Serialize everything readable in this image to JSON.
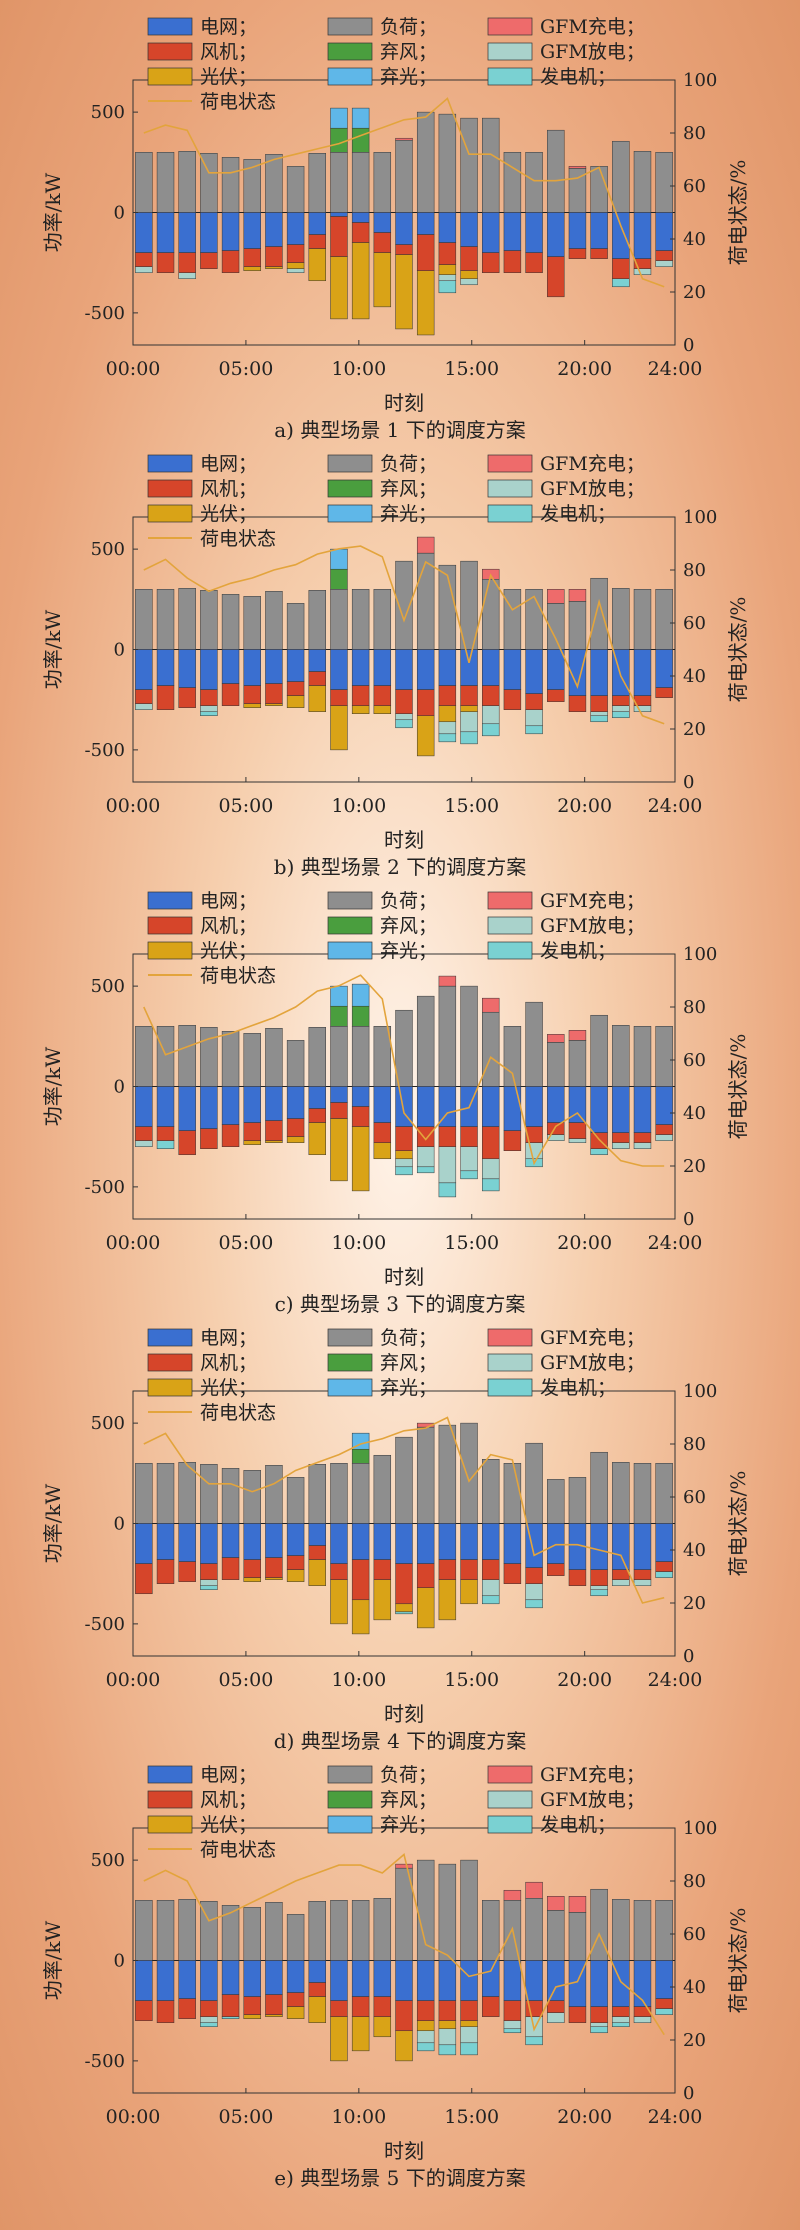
{
  "legend_labels": {
    "grid": "电网；",
    "load": "负荷；",
    "gfmc": "GFM充电；",
    "wind": "风机；",
    "windc": "弃风；",
    "gfmd": "GFM放电；",
    "pv": "光伏；",
    "pvc": "弃光；",
    "gen": "发电机；",
    "soc": "荷电状态"
  },
  "colors": {
    "grid": "#3a6fd0",
    "load": "#8e8e8e",
    "gfmc": "#ee6b6b",
    "wind": "#d6452a",
    "windc": "#4a9e3e",
    "gfmd": "#a9d2cb",
    "pv": "#d9a317",
    "pvc": "#5fb7e8",
    "gen": "#7ad1d2",
    "soc": "#e3a43c"
  },
  "chart_data": [
    {
      "type": "bar",
      "title": "a) 典型场景 1 下的调度方案",
      "xlabel": "时刻",
      "ylabel": "功率/kW",
      "y2label": "荷电状态/%",
      "x_ticks": [
        "00:00",
        "05:00",
        "10:00",
        "15:00",
        "20:00",
        "24:00"
      ],
      "y_ticks": [
        -500,
        0,
        500
      ],
      "y2_ticks": [
        0,
        20,
        40,
        60,
        80,
        100
      ],
      "ylim": [
        -660,
        660
      ],
      "y2lim": [
        0,
        100
      ],
      "load": [
        300,
        300,
        305,
        295,
        275,
        265,
        290,
        230,
        295,
        300,
        300,
        300,
        360,
        500,
        490,
        470,
        470,
        300,
        300,
        410,
        220,
        230,
        355,
        305,
        300
      ],
      "windc": [
        0,
        0,
        0,
        0,
        0,
        0,
        0,
        0,
        0,
        120,
        120,
        0,
        0,
        0,
        0,
        0,
        0,
        0,
        0,
        0,
        0,
        0,
        0,
        0,
        0
      ],
      "pvc": [
        0,
        0,
        0,
        0,
        0,
        0,
        0,
        0,
        0,
        100,
        100,
        0,
        0,
        0,
        0,
        0,
        0,
        0,
        0,
        0,
        0,
        0,
        0,
        0,
        0
      ],
      "gfmc": [
        0,
        0,
        0,
        0,
        0,
        0,
        0,
        0,
        0,
        0,
        0,
        0,
        10,
        0,
        0,
        0,
        0,
        0,
        0,
        0,
        10,
        0,
        0,
        0,
        0
      ],
      "grid": [
        -200,
        -200,
        -200,
        -200,
        -190,
        -180,
        -170,
        -160,
        -110,
        -20,
        -50,
        -100,
        -160,
        -110,
        -150,
        -170,
        -200,
        -190,
        -200,
        -220,
        -180,
        -180,
        -230,
        -230,
        -190
      ],
      "wind": [
        -70,
        -100,
        -100,
        -80,
        -110,
        -90,
        -100,
        -90,
        -70,
        -200,
        -100,
        -100,
        -50,
        -180,
        -110,
        -120,
        -100,
        -110,
        -100,
        -200,
        -50,
        -50,
        -100,
        -50,
        -50
      ],
      "pv": [
        0,
        0,
        0,
        0,
        0,
        -20,
        -10,
        -30,
        -160,
        -310,
        -380,
        -270,
        -370,
        -320,
        -50,
        -40,
        0,
        0,
        0,
        0,
        0,
        0,
        0,
        0,
        0
      ],
      "gfmd": [
        -30,
        0,
        -30,
        0,
        0,
        0,
        0,
        -20,
        0,
        0,
        0,
        0,
        0,
        0,
        -30,
        -30,
        0,
        0,
        0,
        0,
        0,
        0,
        0,
        -30,
        -30
      ],
      "gen": [
        0,
        0,
        0,
        0,
        0,
        0,
        0,
        0,
        0,
        0,
        0,
        0,
        0,
        0,
        -60,
        0,
        0,
        0,
        0,
        0,
        0,
        0,
        -40,
        0,
        0
      ],
      "soc": [
        80,
        83,
        81,
        65,
        65,
        67,
        70,
        72,
        74,
        76,
        79,
        82,
        85,
        86,
        93,
        72,
        72,
        67,
        62,
        62,
        63,
        67,
        45,
        25,
        22
      ]
    },
    {
      "type": "bar",
      "title": "b) 典型场景 2 下的调度方案",
      "xlabel": "时刻",
      "ylabel": "功率/kW",
      "y2label": "荷电状态/%",
      "x_ticks": [
        "00:00",
        "05:00",
        "10:00",
        "15:00",
        "20:00",
        "24:00"
      ],
      "y_ticks": [
        -500,
        0,
        500
      ],
      "y2_ticks": [
        0,
        20,
        40,
        60,
        80,
        100
      ],
      "ylim": [
        -660,
        660
      ],
      "y2lim": [
        0,
        100
      ],
      "load": [
        300,
        300,
        305,
        295,
        275,
        265,
        290,
        230,
        295,
        300,
        300,
        300,
        440,
        480,
        420,
        440,
        350,
        300,
        300,
        230,
        240,
        355,
        305,
        300,
        300
      ],
      "windc": [
        0,
        0,
        0,
        0,
        0,
        0,
        0,
        0,
        0,
        100,
        0,
        0,
        0,
        0,
        0,
        0,
        0,
        0,
        0,
        0,
        0,
        0,
        0,
        0,
        0
      ],
      "pvc": [
        0,
        0,
        0,
        0,
        0,
        0,
        0,
        0,
        0,
        100,
        0,
        0,
        0,
        0,
        0,
        0,
        0,
        0,
        0,
        0,
        0,
        0,
        0,
        0,
        0
      ],
      "gfmc": [
        0,
        0,
        0,
        0,
        0,
        0,
        0,
        0,
        0,
        0,
        0,
        0,
        0,
        80,
        0,
        0,
        50,
        0,
        0,
        70,
        60,
        0,
        0,
        0,
        0
      ],
      "grid": [
        -200,
        -180,
        -190,
        -200,
        -170,
        -180,
        -170,
        -160,
        -110,
        -200,
        -180,
        -180,
        -200,
        -200,
        -180,
        -180,
        -180,
        -200,
        -220,
        -200,
        -230,
        -230,
        -230,
        -230,
        -190
      ],
      "wind": [
        -70,
        -120,
        -100,
        -80,
        -110,
        -90,
        -100,
        -70,
        -70,
        -80,
        -100,
        -100,
        -120,
        -130,
        -100,
        -100,
        -100,
        -100,
        -80,
        -60,
        -80,
        -80,
        -50,
        -50,
        -50
      ],
      "pv": [
        0,
        0,
        0,
        0,
        0,
        -20,
        -10,
        -60,
        -130,
        -220,
        -40,
        -40,
        0,
        -200,
        -80,
        -30,
        0,
        0,
        0,
        0,
        0,
        0,
        0,
        0,
        0
      ],
      "gfmd": [
        -30,
        0,
        0,
        -30,
        0,
        0,
        0,
        0,
        0,
        0,
        0,
        0,
        -30,
        0,
        -60,
        -100,
        -90,
        0,
        -80,
        0,
        0,
        -20,
        -30,
        -30,
        0
      ],
      "gen": [
        0,
        0,
        0,
        -20,
        0,
        0,
        0,
        0,
        0,
        0,
        0,
        0,
        -40,
        0,
        -40,
        -60,
        -60,
        0,
        -40,
        0,
        0,
        -30,
        -30,
        0,
        0
      ],
      "soc": [
        80,
        84,
        77,
        72,
        75,
        77,
        80,
        82,
        86,
        88,
        89,
        85,
        61,
        83,
        78,
        45,
        78,
        65,
        70,
        54,
        36,
        68,
        40,
        25,
        22
      ]
    },
    {
      "type": "bar",
      "title": "c) 典型场景 3 下的调度方案",
      "xlabel": "时刻",
      "ylabel": "功率/kW",
      "y2label": "荷电状态/%",
      "x_ticks": [
        "00:00",
        "05:00",
        "10:00",
        "15:00",
        "20:00",
        "24:00"
      ],
      "y_ticks": [
        -500,
        0,
        500
      ],
      "y2_ticks": [
        0,
        20,
        40,
        60,
        80,
        100
      ],
      "ylim": [
        -660,
        660
      ],
      "y2lim": [
        0,
        100
      ],
      "load": [
        300,
        300,
        305,
        295,
        275,
        265,
        290,
        230,
        295,
        300,
        300,
        300,
        380,
        450,
        500,
        500,
        370,
        300,
        420,
        220,
        230,
        355,
        305,
        300,
        300
      ],
      "windc": [
        0,
        0,
        0,
        0,
        0,
        0,
        0,
        0,
        0,
        100,
        100,
        0,
        0,
        0,
        0,
        0,
        0,
        0,
        0,
        0,
        0,
        0,
        0,
        0,
        0
      ],
      "pvc": [
        0,
        0,
        0,
        0,
        0,
        0,
        0,
        0,
        0,
        100,
        110,
        0,
        0,
        0,
        0,
        0,
        0,
        0,
        0,
        0,
        0,
        0,
        0,
        0,
        0
      ],
      "gfmc": [
        0,
        0,
        0,
        0,
        0,
        0,
        0,
        0,
        0,
        0,
        0,
        0,
        0,
        0,
        50,
        0,
        70,
        0,
        0,
        40,
        50,
        0,
        0,
        0,
        0
      ],
      "grid": [
        -200,
        -200,
        -220,
        -210,
        -190,
        -180,
        -170,
        -160,
        -110,
        -80,
        -100,
        -180,
        -200,
        -200,
        -200,
        -200,
        -200,
        -220,
        -200,
        -180,
        -180,
        -230,
        -230,
        -230,
        -190
      ],
      "wind": [
        -70,
        -70,
        -120,
        -100,
        -110,
        -90,
        -100,
        -90,
        -70,
        -80,
        -100,
        -100,
        -120,
        -100,
        -100,
        -100,
        -160,
        -100,
        -80,
        -60,
        -80,
        -80,
        -50,
        -50,
        -50
      ],
      "pv": [
        0,
        0,
        0,
        0,
        0,
        -20,
        -10,
        -30,
        -160,
        -310,
        -320,
        -80,
        -40,
        0,
        0,
        0,
        0,
        0,
        0,
        0,
        0,
        0,
        0,
        0,
        0
      ],
      "gfmd": [
        -30,
        0,
        0,
        0,
        0,
        0,
        0,
        0,
        0,
        0,
        0,
        0,
        -40,
        -100,
        -180,
        -120,
        -100,
        0,
        -80,
        -30,
        -20,
        0,
        -30,
        -30,
        -30
      ],
      "gen": [
        0,
        -40,
        0,
        0,
        0,
        0,
        0,
        0,
        0,
        0,
        0,
        0,
        -40,
        -30,
        -70,
        -40,
        -60,
        0,
        -40,
        0,
        0,
        -30,
        0,
        0,
        0
      ],
      "soc": [
        80,
        62,
        65,
        68,
        70,
        73,
        76,
        80,
        86,
        88,
        92,
        83,
        40,
        30,
        40,
        42,
        61,
        55,
        21,
        35,
        40,
        30,
        22,
        20,
        20
      ]
    },
    {
      "type": "bar",
      "title": "d) 典型场景 4 下的调度方案",
      "xlabel": "时刻",
      "ylabel": "功率/kW",
      "y2label": "荷电状态/%",
      "x_ticks": [
        "00:00",
        "05:00",
        "10:00",
        "15:00",
        "20:00",
        "24:00"
      ],
      "y_ticks": [
        -500,
        0,
        500
      ],
      "y2_ticks": [
        0,
        20,
        40,
        60,
        80,
        100
      ],
      "ylim": [
        -660,
        660
      ],
      "y2lim": [
        0,
        100
      ],
      "load": [
        300,
        300,
        305,
        295,
        275,
        265,
        290,
        230,
        295,
        300,
        300,
        340,
        430,
        480,
        490,
        500,
        320,
        300,
        400,
        220,
        230,
        355,
        305,
        300,
        300
      ],
      "windc": [
        0,
        0,
        0,
        0,
        0,
        0,
        0,
        0,
        0,
        0,
        70,
        0,
        0,
        0,
        0,
        0,
        0,
        0,
        0,
        0,
        0,
        0,
        0,
        0,
        0
      ],
      "pvc": [
        0,
        0,
        0,
        0,
        0,
        0,
        0,
        0,
        0,
        0,
        80,
        0,
        0,
        0,
        0,
        0,
        0,
        0,
        0,
        0,
        0,
        0,
        0,
        0,
        0
      ],
      "gfmc": [
        0,
        0,
        0,
        0,
        0,
        0,
        0,
        0,
        0,
        0,
        0,
        0,
        0,
        20,
        0,
        0,
        0,
        0,
        0,
        0,
        0,
        0,
        0,
        0,
        0
      ],
      "grid": [
        -200,
        -180,
        -190,
        -200,
        -170,
        -180,
        -170,
        -160,
        -110,
        -200,
        -180,
        -180,
        -200,
        -200,
        -180,
        -180,
        -180,
        -200,
        -220,
        -200,
        -230,
        -230,
        -230,
        -230,
        -190
      ],
      "wind": [
        -150,
        -120,
        -100,
        -80,
        -110,
        -90,
        -100,
        -70,
        -70,
        -80,
        -200,
        -100,
        -200,
        -120,
        -100,
        -100,
        -100,
        -100,
        -80,
        -60,
        -80,
        -80,
        -50,
        -50,
        -50
      ],
      "pv": [
        0,
        0,
        0,
        0,
        0,
        -20,
        -10,
        -60,
        -130,
        -220,
        -170,
        -200,
        -40,
        -200,
        -200,
        -120,
        0,
        0,
        0,
        0,
        0,
        0,
        0,
        0,
        0
      ],
      "gfmd": [
        0,
        0,
        0,
        -30,
        0,
        0,
        0,
        0,
        0,
        0,
        0,
        0,
        0,
        0,
        0,
        0,
        -80,
        0,
        -80,
        0,
        0,
        -20,
        -30,
        -30,
        0
      ],
      "gen": [
        0,
        0,
        0,
        -20,
        0,
        0,
        0,
        0,
        0,
        0,
        0,
        0,
        -10,
        0,
        0,
        0,
        -40,
        0,
        -40,
        0,
        0,
        -30,
        0,
        0,
        -30
      ],
      "soc": [
        80,
        84,
        72,
        65,
        65,
        62,
        65,
        70,
        73,
        76,
        80,
        82,
        85,
        86,
        90,
        66,
        76,
        74,
        38,
        42,
        42,
        40,
        38,
        20,
        22
      ]
    },
    {
      "type": "bar",
      "title": "e) 典型场景 5 下的调度方案",
      "xlabel": "时刻",
      "ylabel": "功率/kW",
      "y2label": "荷电状态/%",
      "x_ticks": [
        "00:00",
        "05:00",
        "10:00",
        "15:00",
        "20:00",
        "24:00"
      ],
      "y_ticks": [
        -500,
        0,
        500
      ],
      "y2_ticks": [
        0,
        20,
        40,
        60,
        80,
        100
      ],
      "ylim": [
        -660,
        660
      ],
      "y2lim": [
        0,
        100
      ],
      "load": [
        300,
        300,
        305,
        295,
        275,
        265,
        290,
        230,
        295,
        300,
        300,
        310,
        460,
        500,
        480,
        500,
        300,
        300,
        310,
        250,
        240,
        355,
        305,
        300,
        300
      ],
      "windc": [
        0,
        0,
        0,
        0,
        0,
        0,
        0,
        0,
        0,
        0,
        0,
        0,
        0,
        0,
        0,
        0,
        0,
        0,
        0,
        0,
        0,
        0,
        0,
        0,
        0
      ],
      "pvc": [
        0,
        0,
        0,
        0,
        0,
        0,
        0,
        0,
        0,
        0,
        0,
        0,
        0,
        0,
        0,
        0,
        0,
        0,
        0,
        0,
        0,
        0,
        0,
        0,
        0
      ],
      "gfmc": [
        0,
        0,
        0,
        0,
        0,
        0,
        0,
        0,
        0,
        0,
        0,
        0,
        20,
        0,
        0,
        0,
        0,
        50,
        80,
        70,
        80,
        0,
        0,
        0,
        0
      ],
      "grid": [
        -200,
        -200,
        -190,
        -200,
        -170,
        -180,
        -170,
        -160,
        -110,
        -200,
        -180,
        -180,
        -200,
        -200,
        -200,
        -200,
        -180,
        -200,
        -200,
        -200,
        -230,
        -230,
        -230,
        -230,
        -190
      ],
      "wind": [
        -100,
        -110,
        -100,
        -80,
        -110,
        -90,
        -100,
        -70,
        -70,
        -80,
        -100,
        -100,
        -150,
        -100,
        -100,
        -100,
        -100,
        -100,
        -80,
        -60,
        -80,
        -80,
        -50,
        -50,
        -50
      ],
      "pv": [
        0,
        0,
        0,
        0,
        0,
        -20,
        -10,
        -60,
        -130,
        -220,
        -170,
        -100,
        -150,
        -50,
        -40,
        -30,
        0,
        0,
        0,
        0,
        0,
        0,
        0,
        0,
        0
      ],
      "gfmd": [
        0,
        0,
        0,
        -30,
        0,
        0,
        0,
        0,
        0,
        0,
        0,
        0,
        0,
        -60,
        -80,
        -80,
        0,
        -40,
        -100,
        -50,
        0,
        -20,
        -30,
        -30,
        0
      ],
      "gen": [
        0,
        0,
        0,
        -20,
        -10,
        0,
        0,
        0,
        0,
        0,
        0,
        0,
        0,
        -40,
        -50,
        -60,
        0,
        -20,
        -40,
        0,
        0,
        -30,
        -20,
        0,
        -30
      ],
      "soc": [
        80,
        84,
        80,
        65,
        68,
        72,
        76,
        80,
        83,
        86,
        86,
        83,
        90,
        56,
        52,
        44,
        46,
        62,
        24,
        40,
        42,
        60,
        42,
        35,
        22
      ]
    }
  ]
}
